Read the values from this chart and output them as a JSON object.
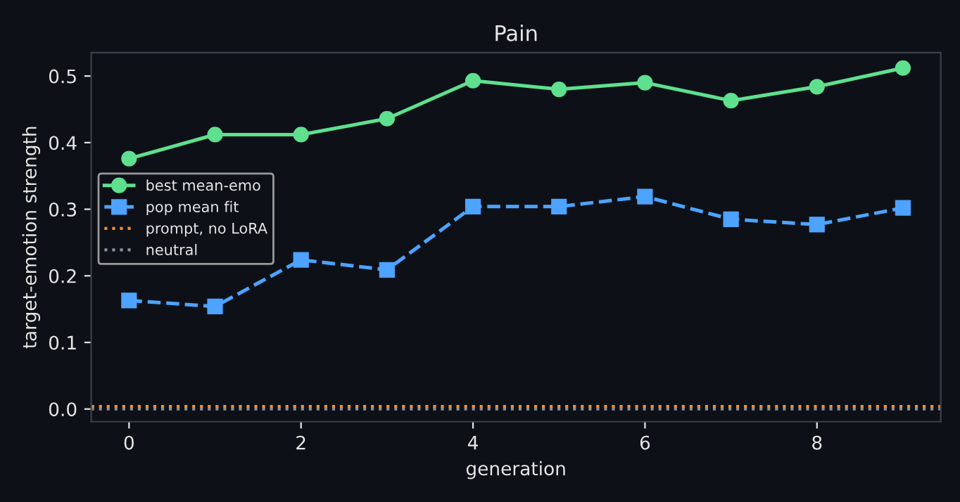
{
  "chart_data": {
    "type": "line",
    "title": "Pain",
    "xlabel": "generation",
    "ylabel": "target-emotion strength",
    "x": [
      0,
      1,
      2,
      3,
      4,
      5,
      6,
      7,
      8,
      9
    ],
    "series": [
      {
        "name": "best mean-emo",
        "color": "#5ee08f",
        "values": [
          0.376,
          0.412,
          0.412,
          0.436,
          0.493,
          0.48,
          0.49,
          0.463,
          0.484,
          0.512
        ],
        "marker": "circle",
        "line_style": "solid"
      },
      {
        "name": "pop mean fit",
        "color": "#4da3ff",
        "values": [
          0.163,
          0.154,
          0.224,
          0.209,
          0.304,
          0.304,
          0.319,
          0.285,
          0.277,
          0.302
        ],
        "marker": "square",
        "line_style": "dashed"
      }
    ],
    "ref_lines": [
      {
        "axis": "y",
        "value": 0.004,
        "label": "prompt, no LoRA",
        "color": "#ff8c2a",
        "line_style": "dotted"
      },
      {
        "axis": "y",
        "value": 0.0,
        "label": "neutral",
        "color": "#8a8f99",
        "line_style": "dotted"
      }
    ],
    "xlim": [
      -0.44,
      9.44
    ],
    "ylim": [
      -0.019,
      0.535
    ],
    "xticks": [
      0,
      2,
      4,
      6,
      8
    ],
    "yticks": [
      {
        "value": 0,
        "label": "0.0"
      },
      {
        "value": 0.1,
        "label": "0.1"
      },
      {
        "value": 0.2,
        "label": "0.2"
      },
      {
        "value": 0.3,
        "label": "0.3"
      },
      {
        "value": 0.4,
        "label": "0.4"
      },
      {
        "value": 0.5,
        "label": "0.5"
      }
    ],
    "grid": false,
    "legend": "center left"
  }
}
